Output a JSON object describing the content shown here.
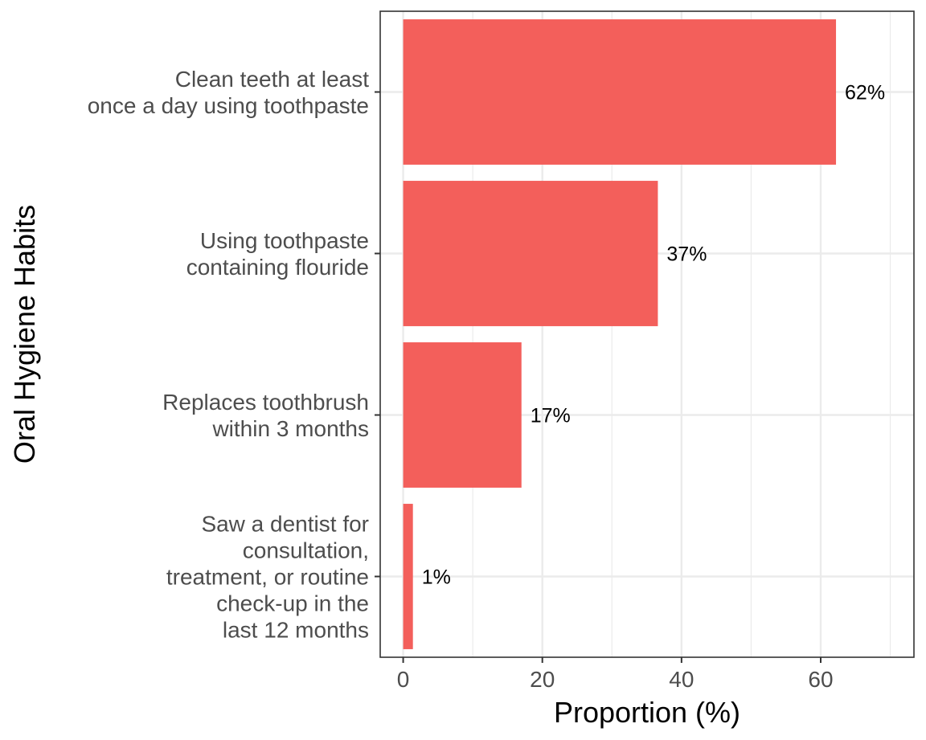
{
  "chart_data": {
    "type": "bar",
    "orientation": "horizontal",
    "categories": [
      "Clean teeth at least once a day using toothpaste",
      "Using toothpaste containing flouride",
      "Replaces toothbrush within 3 months",
      "Saw a dentist for consultation, treatment, or routine check-up in the last 12 months"
    ],
    "category_label_lines": [
      [
        "Clean teeth at least",
        "once a day using toothpaste"
      ],
      [
        "Using toothpaste",
        "containing flouride"
      ],
      [
        "Replaces toothbrush",
        "within 3 months"
      ],
      [
        "Saw a dentist for",
        "consultation,",
        "treatment, or routine",
        "check-up in the",
        "last 12 months"
      ]
    ],
    "values": [
      62.2,
      36.6,
      17.0,
      1.4
    ],
    "data_labels": [
      "62%",
      "37%",
      "17%",
      "1%"
    ],
    "xlabel": "Proportion (%)",
    "ylabel": "Oral Hygiene Habits",
    "xlim": [
      -3.3,
      73.4
    ],
    "xticks": [
      0,
      20,
      40,
      60
    ],
    "xtick_labels": [
      "0",
      "20",
      "40",
      "60"
    ],
    "grid": true,
    "legend": "none",
    "bar_color": "#f35f5b",
    "grid_color": "#ebebeb",
    "panel_border_color": "#333333"
  }
}
